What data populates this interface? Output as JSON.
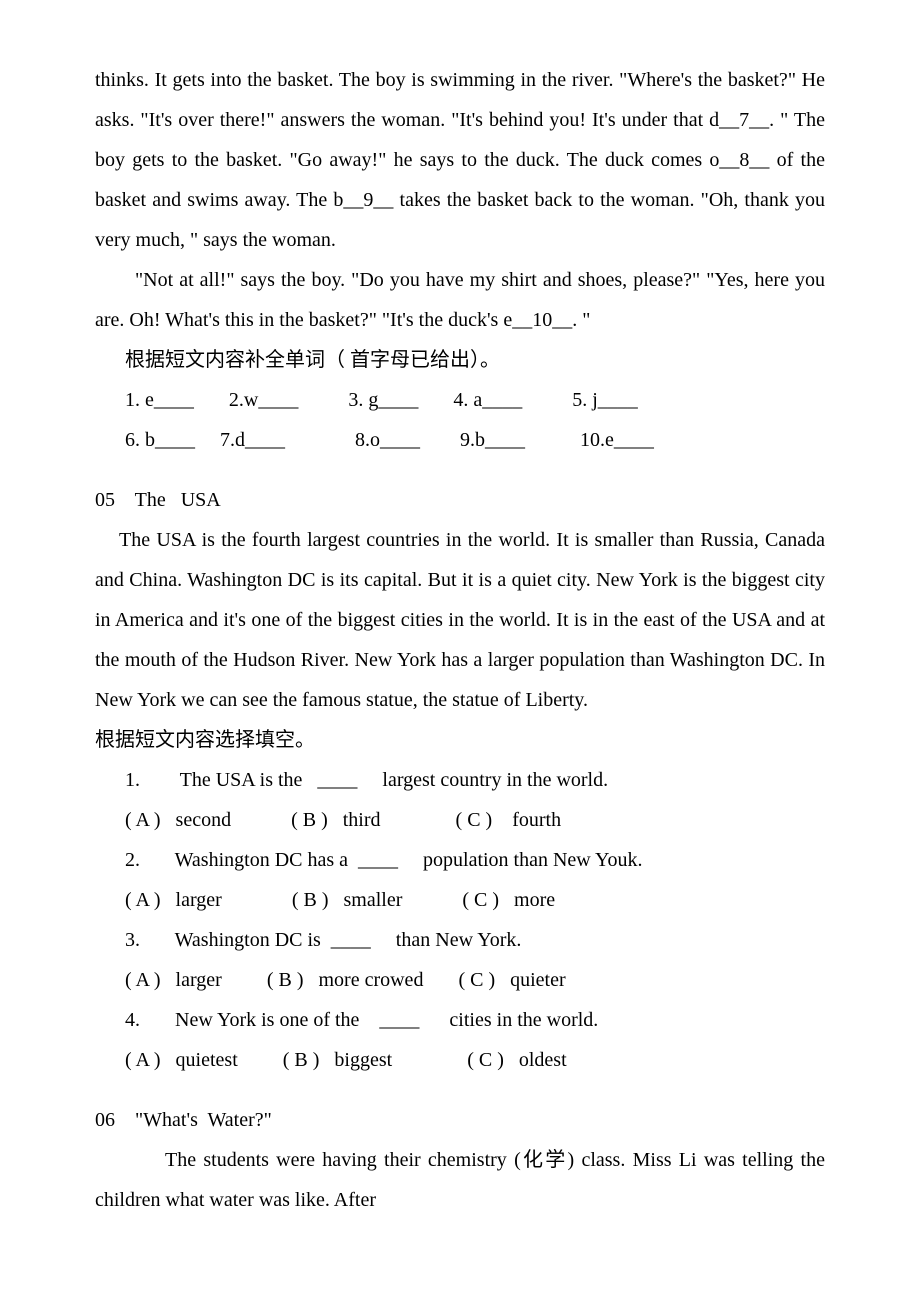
{
  "chunk1": {
    "p1": "thinks. It gets into the basket. The boy is swimming in the river. \"Where's the basket?\" He asks.  \"It's over there!\" answers the woman.  \"It's behind you! It's under that d__7__. \" The boy gets to the basket. \"Go away!\" he says to the duck. The duck comes o__8__ of the basket and swims away. The b__9__ takes the basket back to the woman.  \"Oh, thank you very much, \" says the woman.",
    "p2": "\"Not at all!\" says the boy. \"Do you have my shirt and shoes, please?\"  \"Yes, here you are. Oh! What's this in the basket?\" \"It's the duck's e__10__. \"",
    "cn_instruction": "根据短文内容补全单词（ 首字母已给出）。",
    "blanks_row1": "1. e____       2.w____          3. g____       4. a____          5. j____",
    "blanks_row2": "6. b____     7.d____              8.o____        9.b____           10.e____"
  },
  "chunk2": {
    "heading": "05    The   USA",
    "body": "The USA is the fourth largest countries in the world. It is smaller than Russia, Canada and China. Washington DC is its capital. But it is a quiet city. New York is the biggest city in America and it's one of the biggest cities in the world. It is in the east of the USA and at the mouth of the Hudson River. New York has a larger population than Washington DC. In New York we can see the famous statue, the statue of Liberty.",
    "cn_instruction": "根据短文内容选择填空。",
    "q1": "1.        The USA is the   ____     largest country in the world.",
    "q1_opts": "( A )   second            ( B )   third               ( C )    fourth",
    "q2": "2.       Washington DC has a  ____     population than New Youk.",
    "q2_opts": "( A )   larger              ( B )   smaller            ( C )   more",
    "q3": "3.       Washington DC is  ____     than New York.",
    "q3_opts": "( A )   larger         ( B )   more crowed       ( C )   quieter",
    "q4": "4.       New York is one of the    ____      cities in the world.",
    "q4_opts": "( A )   quietest         ( B )   biggest               ( C )   oldest"
  },
  "chunk3": {
    "heading": "06    \"What's  Water?\"",
    "body": "The students were having their chemistry (化学) class. Miss Li was telling the children what water was like. After"
  }
}
